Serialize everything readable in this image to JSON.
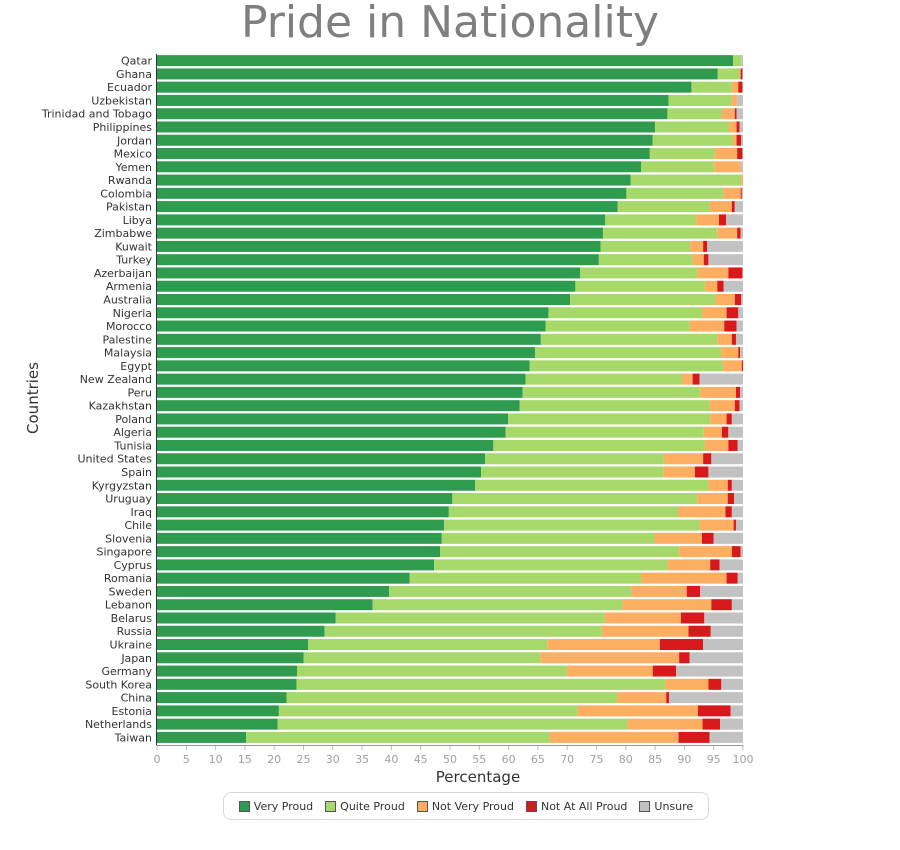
{
  "chart_data": {
    "type": "bar",
    "orientation": "horizontal",
    "stacked": true,
    "title": "Pride in Nationality",
    "xlabel": "Percentage",
    "ylabel": "Countries",
    "xlim": [
      0,
      100
    ],
    "xticks": [
      "0",
      "5",
      "10",
      "15",
      "20",
      "25",
      "30",
      "35",
      "40",
      "45",
      "50",
      "55",
      "60",
      "65",
      "70",
      "75",
      "80",
      "85",
      "90",
      "95",
      "100"
    ],
    "legend_position": "bottom",
    "categories": [
      "Qatar",
      "Ghana",
      "Ecuador",
      "Uzbekistan",
      "Trinidad and Tobago",
      "Philippines",
      "Jordan",
      "Mexico",
      "Yemen",
      "Rwanda",
      "Colombia",
      "Pakistan",
      "Libya",
      "Zimbabwe",
      "Kuwait",
      "Turkey",
      "Azerbaijan",
      "Armenia",
      "Australia",
      "Nigeria",
      "Morocco",
      "Palestine",
      "Malaysia",
      "Egypt",
      "New Zealand",
      "Peru",
      "Kazakhstan",
      "Poland",
      "Algeria",
      "Tunisia",
      "United States",
      "Spain",
      "Kyrgyzstan",
      "Uruguay",
      "Iraq",
      "Chile",
      "Slovenia",
      "Singapore",
      "Cyprus",
      "Romania",
      "Sweden",
      "Lebanon",
      "Belarus",
      "Russia",
      "Ukraine",
      "Japan",
      "Germany",
      "South Korea",
      "China",
      "Estonia",
      "Netherlands",
      "Taiwan"
    ],
    "series": [
      {
        "name": "Very Proud",
        "color": "#2e9b4e",
        "values": [
          98.3,
          95.7,
          91.2,
          87.3,
          87.1,
          85.0,
          84.6,
          84.1,
          82.6,
          80.8,
          80.1,
          78.6,
          76.5,
          76.1,
          75.7,
          75.4,
          72.2,
          71.4,
          70.5,
          66.8,
          66.3,
          65.5,
          64.5,
          63.6,
          62.9,
          62.4,
          61.9,
          59.9,
          59.5,
          57.4,
          56.0,
          55.3,
          54.3,
          50.4,
          49.8,
          49.0,
          48.6,
          48.3,
          47.3,
          43.1,
          39.6,
          36.8,
          30.5,
          28.6,
          25.8,
          25.0,
          23.9,
          23.8,
          22.1,
          20.8,
          20.6,
          15.2
        ]
      },
      {
        "name": "Quite Proud",
        "color": "#a6d96a",
        "values": [
          1.4,
          3.7,
          6.9,
          10.8,
          9.3,
          12.6,
          13.7,
          11.1,
          12.5,
          18.9,
          16.6,
          15.7,
          15.5,
          19.5,
          15.3,
          16.0,
          20.0,
          22.1,
          24.8,
          26.2,
          24.6,
          30.1,
          31.8,
          33.0,
          26.7,
          30.3,
          32.4,
          34.5,
          33.8,
          36.1,
          30.5,
          31.1,
          39.8,
          41.8,
          39.1,
          43.6,
          36.3,
          40.8,
          39.8,
          39.5,
          41.3,
          42.6,
          45.9,
          47.3,
          40.8,
          40.4,
          46.0,
          62.9,
          56.4,
          51.0,
          59.7,
          51.8
        ]
      },
      {
        "name": "Not Very Proud",
        "color": "#fdae61",
        "values": [
          0.0,
          0.2,
          1.1,
          0.9,
          2.2,
          1.3,
          0.6,
          3.8,
          4.5,
          0.3,
          2.9,
          3.8,
          3.9,
          3.4,
          2.2,
          1.9,
          5.3,
          2.1,
          3.3,
          4.2,
          5.9,
          2.5,
          2.9,
          3.2,
          1.8,
          6.1,
          4.3,
          2.8,
          3.1,
          4.0,
          6.7,
          5.4,
          3.3,
          5.2,
          8.1,
          5.8,
          8.1,
          9.0,
          7.3,
          14.6,
          9.5,
          15.2,
          13.0,
          14.8,
          19.2,
          23.7,
          14.7,
          7.4,
          8.4,
          20.5,
          12.8,
          22.0
        ]
      },
      {
        "name": "Not At All Proud",
        "color": "#d7191c",
        "values": [
          0.0,
          0.3,
          0.7,
          0.0,
          0.3,
          0.5,
          0.8,
          0.9,
          0.0,
          0.0,
          0.2,
          0.5,
          1.2,
          0.6,
          0.7,
          0.8,
          2.4,
          1.1,
          1.1,
          2.0,
          2.1,
          0.7,
          0.3,
          0.2,
          1.2,
          0.7,
          0.8,
          0.9,
          1.1,
          1.6,
          1.4,
          2.3,
          0.7,
          1.1,
          1.1,
          0.4,
          2.0,
          1.5,
          1.6,
          1.9,
          2.3,
          3.5,
          4.0,
          3.8,
          7.4,
          1.8,
          4.0,
          2.2,
          0.5,
          5.6,
          3.0,
          5.3
        ]
      },
      {
        "name": "Unsure",
        "color": "#c2c2c2",
        "values": [
          0.3,
          0.1,
          0.1,
          1.0,
          1.1,
          0.6,
          0.3,
          0.1,
          0.4,
          0.0,
          0.2,
          1.4,
          2.9,
          0.4,
          6.1,
          5.9,
          0.1,
          3.3,
          0.3,
          0.8,
          1.1,
          1.2,
          0.5,
          0.0,
          7.4,
          0.5,
          0.6,
          1.9,
          2.5,
          0.9,
          5.4,
          5.9,
          1.9,
          1.5,
          1.9,
          1.2,
          5.0,
          0.4,
          4.0,
          0.9,
          7.3,
          1.9,
          6.6,
          5.5,
          6.8,
          9.1,
          11.4,
          3.7,
          12.6,
          2.1,
          3.9,
          5.7
        ]
      }
    ]
  }
}
